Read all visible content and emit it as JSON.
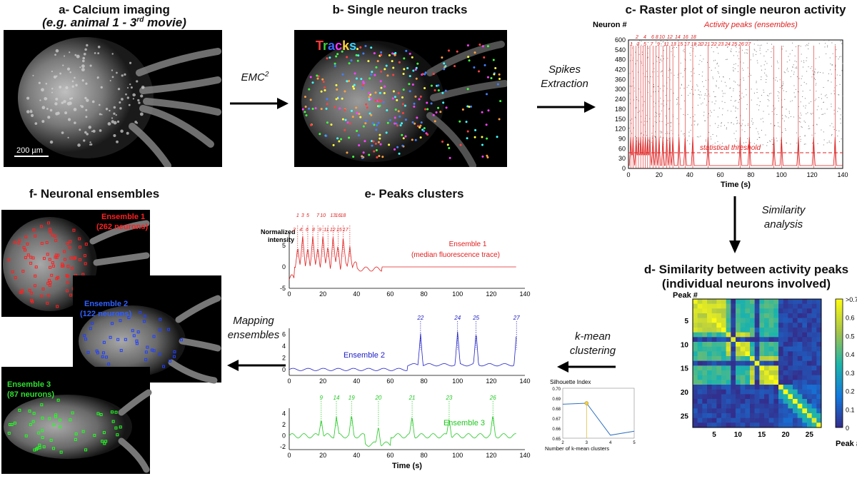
{
  "panel_a": {
    "title": "a- Calcium imaging",
    "subtitle_pre": "(e.g. animal 1 - 3",
    "subtitle_sup": "rd",
    "subtitle_post": " movie)",
    "scale_bar": "200 µm"
  },
  "panel_b": {
    "title": "b- Single neuron tracks",
    "tracks_label": [
      "T",
      "r",
      "a",
      "c",
      "k",
      "s"
    ],
    "tracks_colors": [
      "#ff3b3b",
      "#3bd23b",
      "#3b6bff",
      "#ff3bff",
      "#ffd23b",
      "#3bd2ff"
    ]
  },
  "panel_c": {
    "title": "c- Raster plot of single neuron activity",
    "ylabel": "Neuron #",
    "xlabel": "Time (s)",
    "annotation": "Activity peaks (ensembles)",
    "threshold_label": "statistical threshold",
    "yticks": [
      "0",
      "30",
      "60",
      "90",
      "120",
      "150",
      "180",
      "240",
      "300",
      "360",
      "420",
      "480",
      "540",
      "600"
    ],
    "xticks": [
      "0",
      "20",
      "40",
      "60",
      "80",
      "100",
      "120",
      "140"
    ],
    "peak_labels_top": [
      "2",
      "4",
      "6 8",
      "10",
      "12",
      "14",
      "16",
      "18"
    ],
    "peak_labels_mid": [
      "1",
      "3",
      "5",
      "7",
      "9",
      "11",
      "13",
      "15",
      "17",
      "19",
      "20",
      "21",
      "22",
      "23",
      "24",
      "25",
      "26",
      "27"
    ]
  },
  "panel_d": {
    "title_line1": "d- Similarity between activity peaks",
    "title_line2": "(individual neurons involved)",
    "ylabel": "Peak #",
    "xlabel": "Peak #",
    "yticks": [
      "5",
      "10",
      "15",
      "20",
      "25"
    ],
    "xticks": [
      "5",
      "10",
      "15",
      "20",
      "25"
    ],
    "colorbar_ticks": [
      ">0.7",
      "0.6",
      "0.5",
      "0.4",
      "0.3",
      "0.2",
      "0.1",
      "0"
    ]
  },
  "panel_e": {
    "title": "e- Peaks clusters",
    "ylabel_line1": "Normalized",
    "ylabel_line2": "intensity",
    "xlabel": "Time (s)",
    "xticks": [
      "0",
      "20",
      "40",
      "60",
      "80",
      "100",
      "120",
      "140"
    ],
    "ens1": {
      "name": "Ensemble 1",
      "sub": "(median fluorescence trace)",
      "yticks": [
        "5",
        "0",
        "-5"
      ],
      "peaks_top": [
        "1",
        "3",
        "5",
        "7",
        "10",
        "13",
        "16",
        "18"
      ],
      "peaks_mid": [
        "2",
        "4",
        "6",
        "8",
        "9",
        "11",
        "12",
        "15",
        "17"
      ],
      "color": "#e02020"
    },
    "ens2": {
      "name": "Ensemble 2",
      "yticks": [
        "6",
        "4",
        "2",
        "0"
      ],
      "peaks": [
        "22",
        "24",
        "25",
        "27"
      ],
      "color": "#2020c8"
    },
    "ens3": {
      "name": "Ensemble 3",
      "yticks": [
        "4",
        "2",
        "0",
        "-2"
      ],
      "peaks": [
        "9",
        "14",
        "19",
        "20",
        "21",
        "23",
        "26"
      ],
      "color": "#20c820"
    }
  },
  "panel_f": {
    "title": "f- Neuronal ensembles",
    "ens1_name": "Ensemble 1",
    "ens1_count": "(262 neurons)",
    "ens2_name": "Ensemble 2",
    "ens2_count": "(122 neurons)",
    "ens3_name": "Ensemble 3",
    "ens3_count": "(87 neurons)"
  },
  "arrows": {
    "emc_label": "EMC",
    "emc_sup": "2",
    "spikes_line1": "Spikes",
    "spikes_line2": "Extraction",
    "similarity_line1": "Similarity",
    "similarity_line2": "analysis",
    "kmean_line1": "k-mean",
    "kmean_line2": "clustering",
    "mapping_line1": "Mapping",
    "mapping_line2": "ensembles"
  },
  "silhouette": {
    "title": "Silhouette Index",
    "xlabel": "Number of k-mean clusters",
    "yticks": [
      "0.70",
      "0.69",
      "0.68",
      "0.67",
      "0.66",
      "0.65"
    ],
    "xticks": [
      "2",
      "3",
      "4",
      "5"
    ],
    "chart_data": {
      "type": "line",
      "x": [
        2,
        3,
        4,
        5
      ],
      "y": [
        0.684,
        0.685,
        0.653,
        0.657
      ],
      "ylim": [
        0.65,
        0.7
      ],
      "xlim": [
        2,
        5
      ]
    }
  }
}
